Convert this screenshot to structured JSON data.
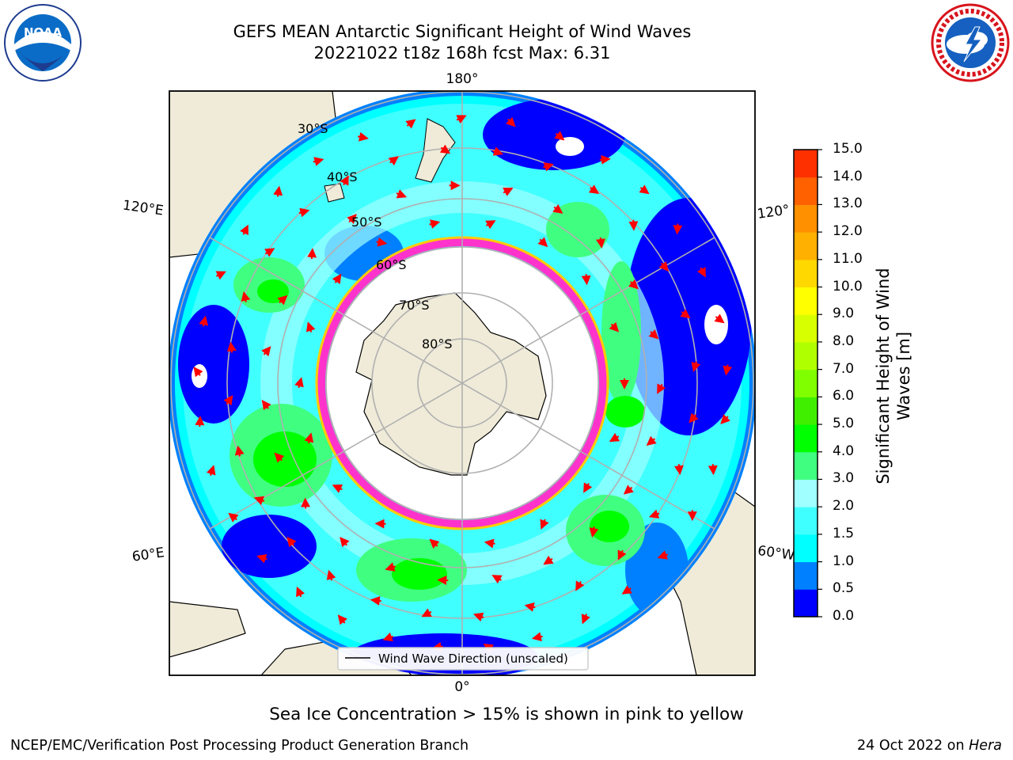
{
  "header": {
    "title_line1": "GEFS MEAN Antarctic Significant Height of Wind Waves",
    "title_line2": "20221022 t18z 168h fcst   Max: 6.31"
  },
  "logos": {
    "noaa_text": "NOAA",
    "noaa_ring_text": "NATIONAL OCEANIC AND ATMOSPHERIC ADMINISTRATION · U.S. DEPARTMENT OF COMMERCE",
    "nws_ring_text": "NATIONAL WEATHER SERVICE"
  },
  "map": {
    "projection": "south-polar-stereographic",
    "longitude_labels": [
      "180°",
      "120°E",
      "120°",
      "60°E",
      "60°W",
      "0°"
    ],
    "latitude_labels": [
      "30°S",
      "40°S",
      "50°S",
      "60°S",
      "70°S",
      "80°S"
    ],
    "legend_label": "Wind Wave Direction (unscaled)",
    "colors": {
      "land": "#efebd8",
      "ocean_low": "#0000ff",
      "sea_ice_edge": "#ff33cc",
      "arrow": "#ff0000",
      "grid": "#b0b0b0"
    }
  },
  "chart_data": {
    "type": "heatmap",
    "title": "GEFS MEAN Antarctic Significant Height of Wind Waves",
    "max_value": 6.31,
    "colorbar": {
      "label": "Significant Height of Wind Waves [m]",
      "label_line1": "Significant Height of Wind",
      "label_line2": "Waves [m]",
      "ticks": [
        "0.0",
        "0.5",
        "1.0",
        "1.5",
        "2.0",
        "3.0",
        "4.0",
        "5.0",
        "6.0",
        "7.0",
        "8.0",
        "9.0",
        "10.0",
        "11.0",
        "12.0",
        "13.0",
        "14.0",
        "15.0"
      ],
      "colors": [
        "#0000ff",
        "#0080ff",
        "#00ffff",
        "#40ffff",
        "#a0ffff",
        "#40ff80",
        "#00ff00",
        "#40ee00",
        "#80ff00",
        "#b0ff00",
        "#d8ff00",
        "#ffff00",
        "#ffd800",
        "#ffb000",
        "#ff9000",
        "#ff6000",
        "#ff3000",
        "#ff0000"
      ],
      "range": [
        0,
        15
      ]
    }
  },
  "captions": {
    "sea_ice_note": "Sea Ice Concentration > 15% is shown in pink to yellow",
    "producer": "NCEP/EMC/Verification Post Processing Product Generation Branch",
    "date": "24 Oct 2022 on",
    "host": "Hera"
  }
}
